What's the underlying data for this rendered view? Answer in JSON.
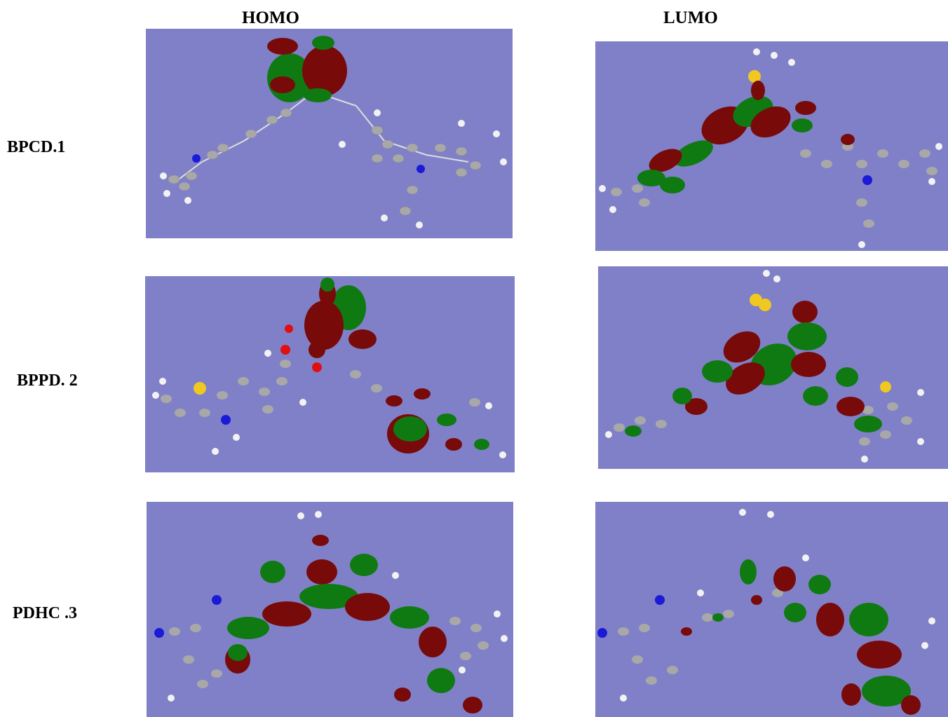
{
  "headers": {
    "homo": "HOMO",
    "lumo": "LUMO"
  },
  "rows": [
    {
      "label": "BPCD.1"
    },
    {
      "label": "BPPD. 2"
    },
    {
      "label": "PDHC .3"
    }
  ],
  "colors": {
    "panel_background": "#8080c8",
    "lobe_green": "#0f7a12",
    "lobe_red": "#780a0a",
    "atom_carbon": "#a8a8a8",
    "atom_hydrogen": "#f2f2f2",
    "atom_nitrogen": "#1a1ad8",
    "atom_sulfur": "#f0c820",
    "atom_oxygen": "#e01010"
  }
}
